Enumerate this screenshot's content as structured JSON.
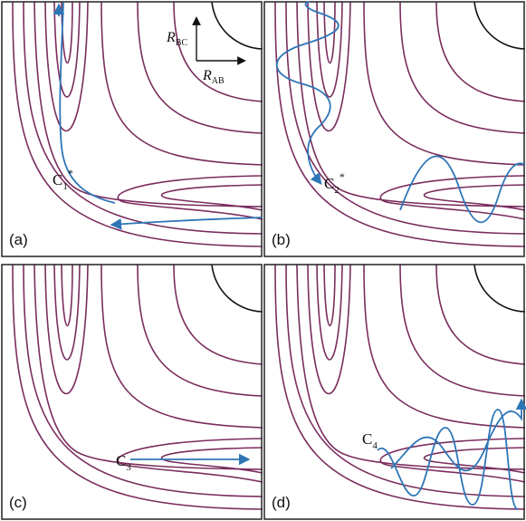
{
  "axes": {
    "y_label": {
      "base": "R",
      "sub": "BC"
    },
    "x_label": {
      "base": "R",
      "sub": "AB"
    }
  },
  "panels": [
    {
      "label": "(a)",
      "trajectory_label": {
        "base": "C",
        "sub": "1",
        "sup": "*"
      }
    },
    {
      "label": "(b)",
      "trajectory_label": {
        "base": "C",
        "sub": "2",
        "sup": "*"
      }
    },
    {
      "label": "(c)",
      "trajectory_label": {
        "base": "C",
        "sub": "3"
      }
    },
    {
      "label": "(d)",
      "trajectory_label": {
        "base": "C",
        "sub": "4"
      }
    }
  ]
}
